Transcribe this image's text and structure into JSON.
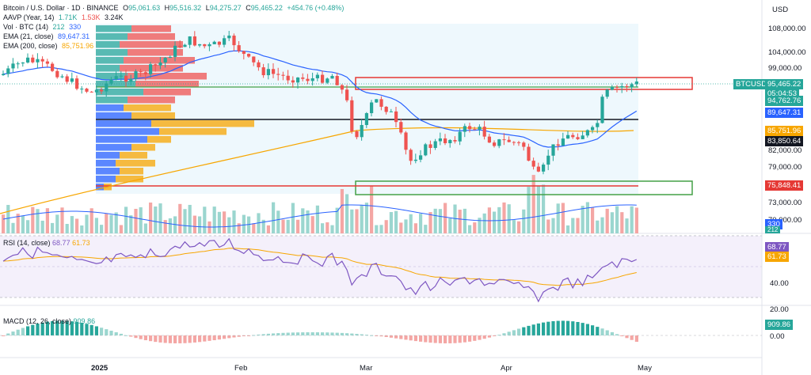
{
  "header": {
    "title": "Bitcoin / U.S. Dollar · 1D · BINANCE",
    "ohlc": {
      "o_label": "O",
      "o": "95,061.63",
      "h_label": "H",
      "h": "95,516.32",
      "l_label": "L",
      "l": "94,275.27",
      "c_label": "C",
      "c": "95,465.22",
      "change": "+454.76 (+0.48%)"
    },
    "currency": "USD"
  },
  "legends": {
    "aavp": {
      "label": "AAVP (Year, 14)",
      "v1": "1.71K",
      "v2": "1.53K",
      "v3": "3.24K"
    },
    "vol": {
      "label": "Vol · BTC (14)",
      "v1": "212",
      "v2": "330"
    },
    "ema21": {
      "label": "EMA (21, close)",
      "value": "89,647.31"
    },
    "ema200": {
      "label": "EMA (200, close)",
      "value": "85,751.96"
    },
    "rsi": {
      "label": "RSI (14, close)",
      "v1": "68.77",
      "v2": "61.73"
    },
    "macd": {
      "label": "MACD (12, 26, close)",
      "value": "909.86"
    }
  },
  "price_axis": [
    "108,000.00",
    "104,000.00",
    "99,000.00",
    "82,000.00",
    "79,000.00",
    "73,000.00",
    "70,000.00"
  ],
  "price_tags": {
    "symbol": "BTCUSD",
    "last": "95,465.22",
    "countdown": "05:04:53",
    "low": "94,762.76",
    "ema21": "89,647.31",
    "ema200": "85,751.96",
    "line": "83,850.64",
    "support": "75,848.41",
    "vol_hi": "330",
    "vol_lo": "212"
  },
  "rsi_axis": [
    "40.00",
    "20.00"
  ],
  "rsi_tags": {
    "rsi": "68.77",
    "ma": "61.73"
  },
  "macd_axis": [
    "0.00"
  ],
  "macd_tag": "909.86",
  "time_axis": [
    "2025",
    "Feb",
    "Mar",
    "Apr",
    "May"
  ],
  "colors": {
    "up": "#26a69a",
    "down": "#ef5350",
    "ema21": "#2962ff",
    "ema200": "#f7a600",
    "rsi": "#7e57c2",
    "resistance": "#e53935",
    "support_zone": "#43a047",
    "line": "#131722"
  },
  "chart_data": {
    "type": "candlestick",
    "timeframe": "1D",
    "x_range": [
      "2024-12-18",
      "2025-04-28"
    ],
    "y_range": [
      72000,
      110000
    ],
    "last": {
      "open": 95061.63,
      "high": 95516.32,
      "low": 94275.27,
      "close": 95465.22
    },
    "series": [
      {
        "name": "EMA (21, close)",
        "last": 89647.31
      },
      {
        "name": "EMA (200, close)",
        "last": 85751.96
      }
    ],
    "levels": [
      83850.64,
      75848.41
    ],
    "rsi": {
      "last": 68.77,
      "ma": 61.73
    },
    "macd": {
      "histogram_last": 909.86
    }
  }
}
